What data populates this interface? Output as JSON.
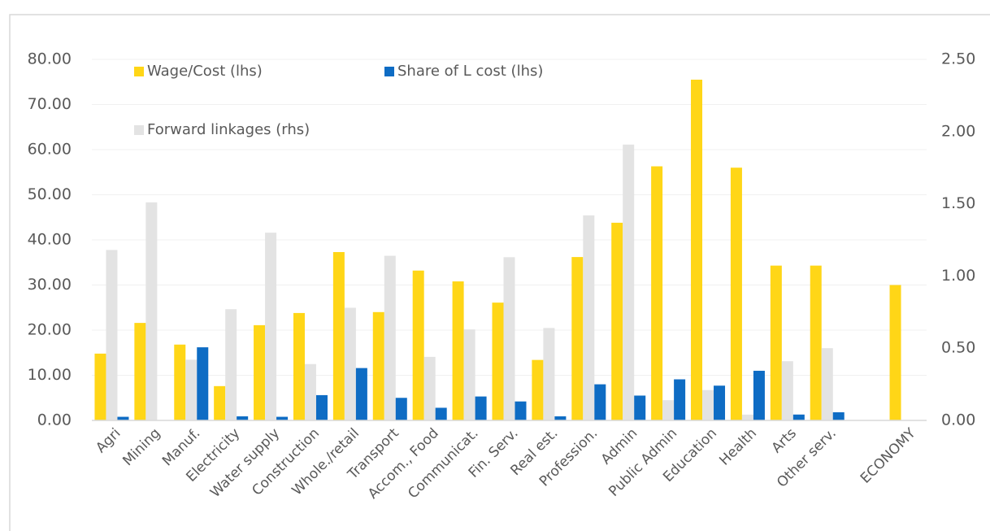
{
  "chart_data": {
    "type": "bar",
    "categories": [
      "Agri",
      "Mining",
      "Manuf.",
      "Electricity",
      "Water supply",
      "Construction",
      "Whole./retail",
      "Transport",
      "Accom., Food",
      "Communicat.",
      "Fin. Serv.",
      "Real est.",
      "Profession.",
      "Admin",
      "Public Admin",
      "Education",
      "Health",
      "Arts",
      "Other serv.",
      null,
      "ECONOMY"
    ],
    "series": [
      {
        "name": "Wage/Cost (lhs)",
        "color": "#FFD617",
        "values": [
          14.8,
          21.6,
          16.8,
          7.6,
          21.1,
          23.8,
          37.3,
          24.0,
          33.2,
          30.8,
          26.1,
          13.4,
          36.2,
          43.8,
          56.3,
          75.5,
          56.0,
          34.3,
          34.3,
          null,
          30.0
        ]
      },
      {
        "name": "Forward linkages (rhs)",
        "color": "#E3E3E3",
        "axis": "y2",
        "values": [
          1.18,
          1.51,
          0.42,
          0.77,
          1.3,
          0.39,
          0.78,
          1.14,
          0.44,
          0.63,
          1.13,
          0.64,
          1.42,
          1.91,
          0.14,
          0.21,
          0.04,
          0.41,
          0.5,
          null,
          null
        ]
      },
      {
        "name": "Share of L cost (lhs)",
        "color": "#0E6CC4",
        "values": [
          0.8,
          0,
          16.2,
          0.9,
          0.8,
          5.6,
          11.6,
          5.0,
          2.8,
          5.3,
          4.2,
          0.9,
          8.0,
          5.5,
          9.1,
          7.7,
          11.0,
          1.3,
          1.8,
          null,
          null
        ]
      }
    ],
    "ylim": [
      0,
      80
    ],
    "yticks": [
      {
        "value": 0,
        "label": "0.00"
      },
      {
        "value": 10,
        "label": "10.00"
      },
      {
        "value": 20,
        "label": "20.00"
      },
      {
        "value": 30,
        "label": "30.00"
      },
      {
        "value": 40,
        "label": "40.00"
      },
      {
        "value": 50,
        "label": "50.00"
      },
      {
        "value": 60,
        "label": "60.00"
      },
      {
        "value": 70,
        "label": "70.00"
      },
      {
        "value": 80,
        "label": "80.00"
      }
    ],
    "y2lim": [
      0,
      2.5
    ],
    "y2ticks": [
      {
        "value": 0,
        "label": "0.00"
      },
      {
        "value": 0.5,
        "label": "0.50"
      },
      {
        "value": 1,
        "label": "1.00"
      },
      {
        "value": 1.5,
        "label": "1.50"
      },
      {
        "value": 2,
        "label": "2.00"
      },
      {
        "value": 2.5,
        "label": "2.50"
      }
    ],
    "grid": true,
    "legend": "top-left"
  }
}
